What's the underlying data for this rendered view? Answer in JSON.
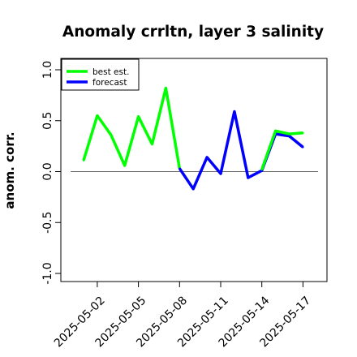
{
  "chart_data": {
    "type": "line",
    "title": "Anomaly crrltn, layer 3 salinity",
    "xlabel": "",
    "ylabel": "anom. corr.",
    "ylim": [
      -1.0,
      1.0
    ],
    "y_ticks": [
      "-1.0",
      "-0.5",
      "0.0",
      "0.5",
      "1.0"
    ],
    "x_tick_labels": [
      "2025-05-02",
      "2025-05-05",
      "2025-05-08",
      "2025-05-11",
      "2025-05-14",
      "2025-05-17"
    ],
    "highlight_tick": "2025-05-08",
    "highlight_color": "#228B22",
    "reference_line": 0.0,
    "legend": {
      "position": "top-left",
      "entries": [
        "best est.",
        "forecast"
      ]
    },
    "series": [
      {
        "name": "best est.",
        "color": "#00ff00",
        "x": [
          "2025-05-01",
          "2025-05-02",
          "2025-05-03",
          "2025-05-04",
          "2025-05-05",
          "2025-05-06",
          "2025-05-07",
          "2025-05-08"
        ],
        "values": [
          0.11,
          0.55,
          0.36,
          0.06,
          0.54,
          0.27,
          0.82,
          0.03
        ]
      },
      {
        "name": "forecast",
        "color": "#0000ff",
        "x": [
          "2025-05-08",
          "2025-05-09",
          "2025-05-10",
          "2025-05-11",
          "2025-05-12",
          "2025-05-13",
          "2025-05-14",
          "2025-05-15",
          "2025-05-16",
          "2025-05-17"
        ],
        "values": [
          0.03,
          -0.17,
          0.14,
          -0.02,
          0.59,
          -0.06,
          0.01,
          0.37,
          0.35,
          0.24
        ]
      },
      {
        "name": "best est.",
        "color": "#00ff00",
        "x": [
          "2025-05-14",
          "2025-05-15",
          "2025-05-16",
          "2025-05-17"
        ],
        "values": [
          0.02,
          0.4,
          0.37,
          0.38
        ]
      }
    ]
  }
}
